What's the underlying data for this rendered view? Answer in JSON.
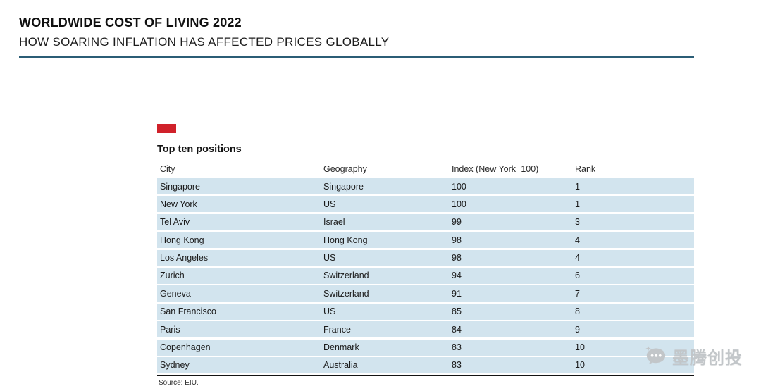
{
  "header": {
    "title": "WORLDWIDE COST OF LIVING 2022",
    "subtitle": "HOW SOARING INFLATION HAS AFFECTED PRICES GLOBALLY"
  },
  "table": {
    "heading": "Top ten positions",
    "columns": [
      "City",
      "Geography",
      "Index (New York=100)",
      "Rank"
    ],
    "rows": [
      [
        "Singapore",
        "Singapore",
        "100",
        "1"
      ],
      [
        "New York",
        "US",
        "100",
        "1"
      ],
      [
        "Tel Aviv",
        "Israel",
        "99",
        "3"
      ],
      [
        "Hong Kong",
        "Hong Kong",
        "98",
        "4"
      ],
      [
        "Los Angeles",
        "US",
        "98",
        "4"
      ],
      [
        "Zurich",
        "Switzerland",
        "94",
        "6"
      ],
      [
        "Geneva",
        "Switzerland",
        "91",
        "7"
      ],
      [
        "San Francisco",
        "US",
        "85",
        "8"
      ],
      [
        "Paris",
        "France",
        "84",
        "9"
      ],
      [
        "Copenhagen",
        "Denmark",
        "83",
        "10"
      ],
      [
        "Sydney",
        "Australia",
        "83",
        "10"
      ]
    ],
    "source": "Source: EIU."
  },
  "watermark": {
    "text": "墨腾创投"
  },
  "colors": {
    "accent": "#d0212a",
    "rule": "#2b5d76",
    "row_bg": "#d2e4ee"
  },
  "chart_data": {
    "type": "table",
    "title": "Worldwide Cost of Living 2022 — Top ten positions",
    "columns": [
      "City",
      "Geography",
      "Index (New York=100)",
      "Rank"
    ],
    "rows": [
      {
        "city": "Singapore",
        "geography": "Singapore",
        "index": 100,
        "rank": 1
      },
      {
        "city": "New York",
        "geography": "US",
        "index": 100,
        "rank": 1
      },
      {
        "city": "Tel Aviv",
        "geography": "Israel",
        "index": 99,
        "rank": 3
      },
      {
        "city": "Hong Kong",
        "geography": "Hong Kong",
        "index": 98,
        "rank": 4
      },
      {
        "city": "Los Angeles",
        "geography": "US",
        "index": 98,
        "rank": 4
      },
      {
        "city": "Zurich",
        "geography": "Switzerland",
        "index": 94,
        "rank": 6
      },
      {
        "city": "Geneva",
        "geography": "Switzerland",
        "index": 91,
        "rank": 7
      },
      {
        "city": "San Francisco",
        "geography": "US",
        "index": 85,
        "rank": 8
      },
      {
        "city": "Paris",
        "geography": "France",
        "index": 84,
        "rank": 9
      },
      {
        "city": "Copenhagen",
        "geography": "Denmark",
        "index": 83,
        "rank": 10
      },
      {
        "city": "Sydney",
        "geography": "Australia",
        "index": 83,
        "rank": 10
      }
    ],
    "index_base": "New York = 100",
    "source": "EIU"
  }
}
